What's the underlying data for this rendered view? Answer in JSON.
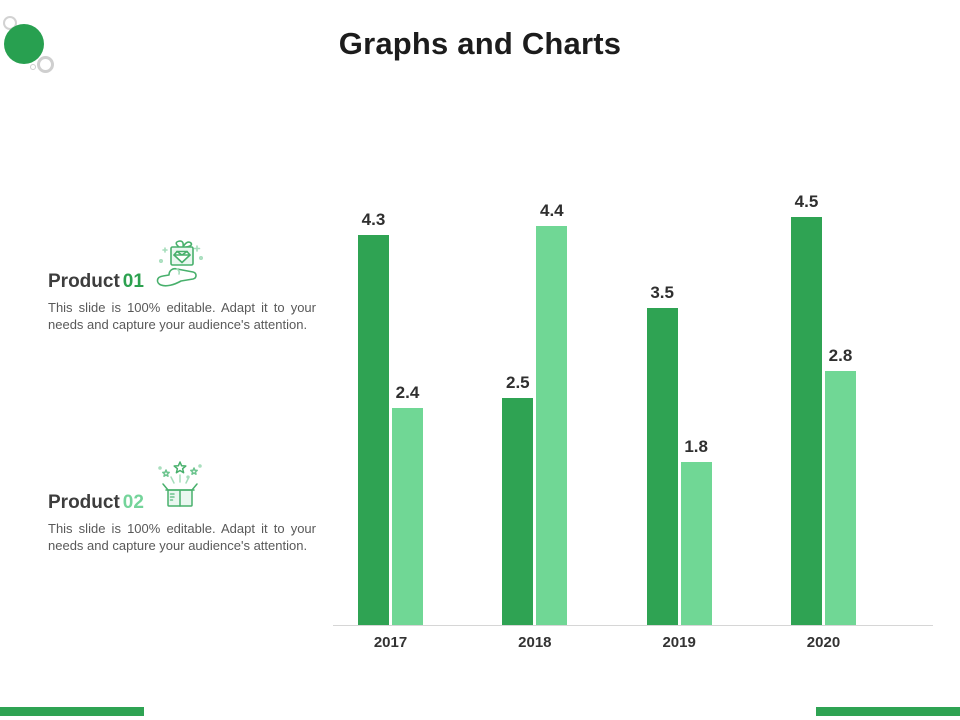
{
  "slide": {
    "title": "Graphs and Charts"
  },
  "products": [
    {
      "label": "Product",
      "number": "01",
      "icon": "gift-in-hand-icon",
      "description": "This slide is 100% editable. Adapt it to your needs and capture your audience's attention."
    },
    {
      "label": "Product",
      "number": "02",
      "icon": "gift-box-stars-icon",
      "description": "This slide is 100% editable. Adapt it to your needs and capture your audience's attention."
    }
  ],
  "chart_data": {
    "type": "bar",
    "categories": [
      "2017",
      "2018",
      "2019",
      "2020"
    ],
    "series": [
      {
        "name": "series-1",
        "color": "#2fa353",
        "values": [
          4.3,
          2.5,
          3.5,
          4.5
        ]
      },
      {
        "name": "series-2",
        "color": "#70d795",
        "values": [
          2.4,
          4.4,
          1.8,
          2.8
        ]
      }
    ],
    "value_labels": true,
    "ylim": [
      0,
      5
    ],
    "gridlines": false,
    "legend": "none",
    "axis_color": "#d6d6d6"
  },
  "colors": {
    "accent_dark_green": "#2fa353",
    "accent_light_green": "#70d795",
    "decor_circle": "#28a050",
    "product01_number": "#2ca14f",
    "product02_number": "#74d49a",
    "footer_left": "#2fa353",
    "footer_right": "#2fa353"
  }
}
